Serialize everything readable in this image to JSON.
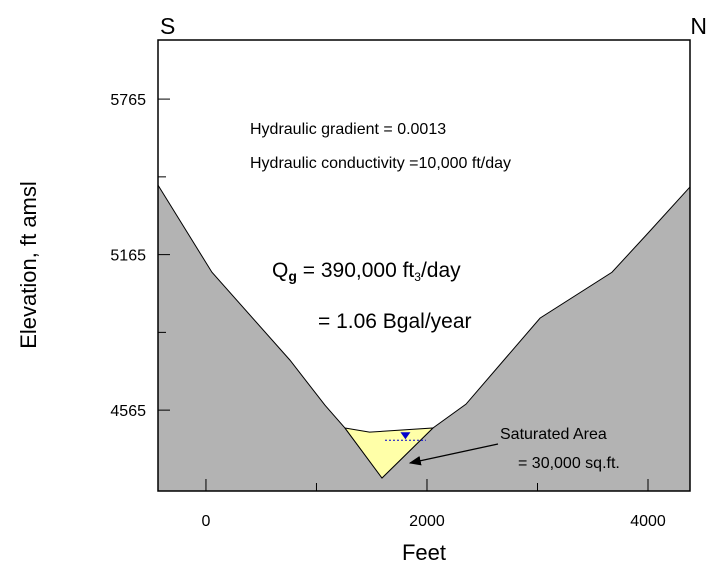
{
  "chart_data": {
    "type": "area",
    "title_left": "S",
    "title_right": "N",
    "xlabel": "Feet",
    "ylabel": "Elevation, ft amsl",
    "xlim": [
      -434,
      4380
    ],
    "ylim": [
      4253,
      5993
    ],
    "xticks": [
      0,
      2000,
      4000
    ],
    "xminor": [
      1000,
      3000
    ],
    "yticks": [
      4565,
      5165,
      5765
    ],
    "yminor": [
      4865,
      5465
    ],
    "series": [
      {
        "color": "#b3b3b3",
        "x": [
          -434,
          54,
          760,
          1077,
          1258,
          1593,
          2054,
          2353,
          3023,
          3674,
          4000,
          4380
        ],
        "values": [
          5433,
          5097,
          4758,
          4584,
          4496,
          4303,
          4496,
          4588,
          4920,
          5097,
          5248,
          5426
        ]
      },
      {
        "color": "#ffffa8",
        "x": [
          1258,
          1480,
          2054,
          1593
        ],
        "values": [
          4496,
          4480,
          4496,
          4303
        ]
      }
    ],
    "water_level": {
      "x": [
        1620,
        1990
      ],
      "value": 4449,
      "color": "#0000cc"
    },
    "annotations": {
      "gradient": "Hydraulic gradient = 0.0013",
      "conductivity": "Hydraulic conductivity =10,000 ft/day",
      "q_parts": [
        "Q",
        "g",
        " = 390,000 ft",
        "3",
        "/day"
      ],
      "q_gal": "= 1.06 Bgal/year",
      "area_1": "Saturated Area",
      "area_2": "= 30,000 sq.ft."
    }
  }
}
